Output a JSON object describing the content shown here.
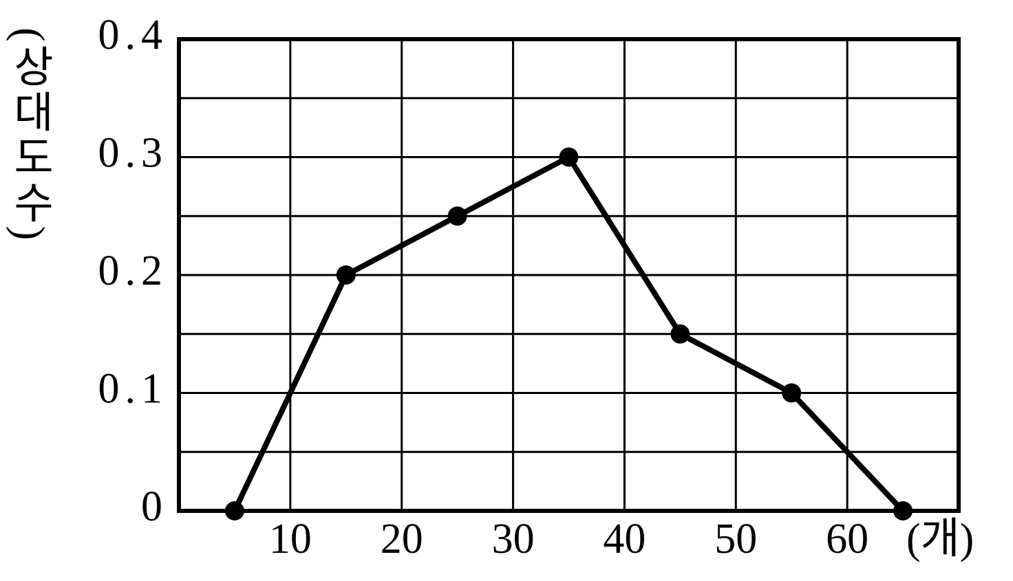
{
  "chart_data": {
    "type": "line",
    "y_label": "(상대도수)",
    "x_label": "(개)",
    "x": [
      5,
      15,
      25,
      35,
      45,
      55,
      65
    ],
    "values": [
      0,
      0.2,
      0.25,
      0.3,
      0.15,
      0.1,
      0
    ],
    "color": "#000000",
    "xlim": [
      0,
      70
    ],
    "xticks": [
      10,
      20,
      30,
      40,
      50,
      60
    ],
    "ylim": [
      0,
      0.4
    ],
    "yticks": [
      0,
      0.1,
      0.2,
      0.3,
      0.4
    ],
    "yminorticks": [
      0.05,
      0.15,
      0.25,
      0.35
    ],
    "grid": true
  }
}
